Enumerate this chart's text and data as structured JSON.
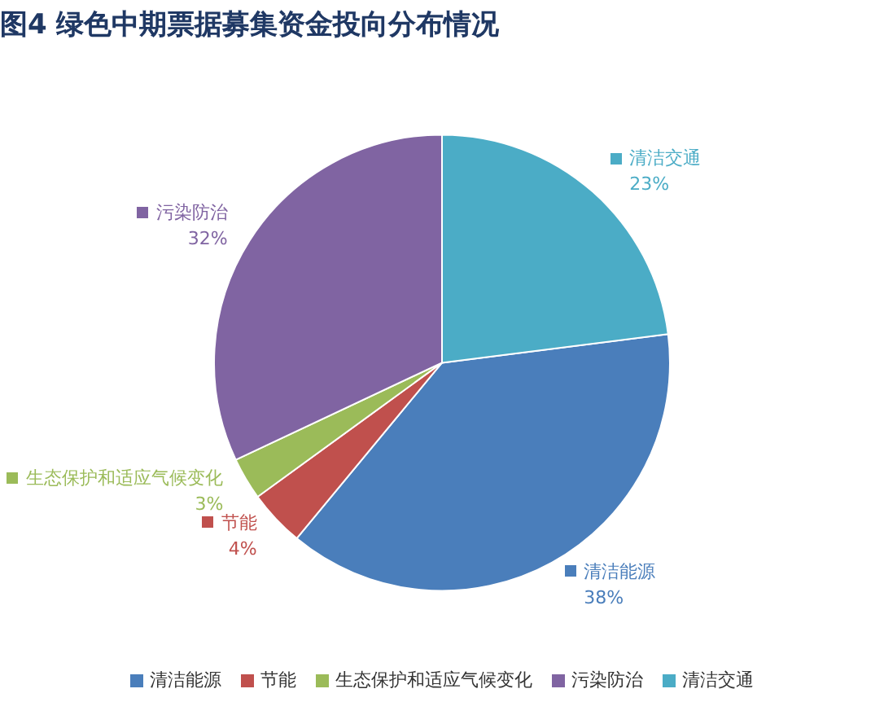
{
  "chart_data": {
    "type": "pie",
    "title": "图4 绿色中期票据募集资金投向分布情况",
    "categories": [
      "清洁能源",
      "节能",
      "生态保护和适应气候变化",
      "污染防治",
      "清洁交通"
    ],
    "values": [
      38,
      4,
      3,
      32,
      23
    ],
    "colors": [
      "#4a7ebb",
      "#c0504d",
      "#9bbb59",
      "#8064a2",
      "#4bacc6"
    ],
    "value_labels": [
      "38%",
      "4%",
      "3%",
      "32%",
      "23%"
    ],
    "legend": "bottom"
  }
}
